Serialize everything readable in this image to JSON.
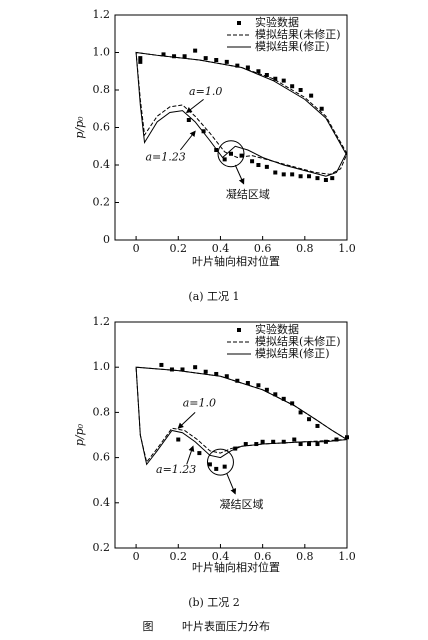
{
  "chart_data": [
    {
      "type": "line",
      "caption": "(a) 工况 1",
      "xlabel": "叶片轴向相对位置",
      "ylabel": "p/p₀",
      "xlim": [
        -0.1,
        1.0
      ],
      "ylim": [
        0,
        1.2
      ],
      "xticks": [
        0,
        0.2,
        0.4,
        0.6,
        0.8,
        {
          "value": 1,
          "label": "1.0"
        }
      ],
      "yticks": [
        0,
        0.2,
        0.4,
        0.6,
        0.8,
        {
          "value": 1,
          "label": "1.0"
        },
        1.2
      ],
      "legend": "upper right",
      "annotations": [
        "a=1.0",
        "a=1.23",
        "凝结区域"
      ],
      "series": [
        {
          "name": "实验数据",
          "color": "#000000",
          "style": "markers",
          "x": [
            0.02,
            0.02,
            0.13,
            0.18,
            0.23,
            0.28,
            0.33,
            0.38,
            0.43,
            0.48,
            0.53,
            0.58,
            0.62,
            0.66,
            0.7,
            0.74,
            0.78,
            0.83,
            0.88,
            0.25,
            0.32,
            0.38,
            0.42,
            0.45,
            0.5,
            0.55,
            0.58,
            0.62,
            0.66,
            0.7,
            0.74,
            0.78,
            0.82,
            0.86,
            0.9,
            0.93
          ],
          "values": [
            0.97,
            0.95,
            0.99,
            0.98,
            0.98,
            1.01,
            0.97,
            0.96,
            0.95,
            0.93,
            0.92,
            0.9,
            0.88,
            0.86,
            0.85,
            0.82,
            0.8,
            0.77,
            0.7,
            0.64,
            0.58,
            0.48,
            0.43,
            0.46,
            0.45,
            0.42,
            0.4,
            0.39,
            0.36,
            0.35,
            0.35,
            0.34,
            0.34,
            0.33,
            0.32,
            0.33
          ]
        },
        {
          "name": "模拟结果(未修正)",
          "color": "#000000",
          "style": "dashed",
          "x": [
            1.0,
            0.95,
            0.9,
            0.8,
            0.65,
            0.5,
            0.3,
            0.1,
            0.0,
            0.02,
            0.04,
            0.1,
            0.16,
            0.22,
            0.28,
            0.35,
            0.42,
            0.48,
            0.55,
            0.65,
            0.75,
            0.85,
            0.92,
            0.97,
            1.0
          ],
          "values": [
            0.46,
            0.56,
            0.66,
            0.76,
            0.86,
            0.92,
            0.96,
            0.985,
            1.0,
            0.75,
            0.56,
            0.66,
            0.71,
            0.72,
            0.66,
            0.57,
            0.47,
            0.44,
            0.45,
            0.42,
            0.39,
            0.36,
            0.35,
            0.38,
            0.46
          ]
        },
        {
          "name": "模拟结果(修正)",
          "color": "#000000",
          "style": "solid",
          "x": [
            1.0,
            0.95,
            0.9,
            0.8,
            0.65,
            0.5,
            0.3,
            0.1,
            0.0,
            0.02,
            0.04,
            0.1,
            0.16,
            0.22,
            0.28,
            0.35,
            0.41,
            0.47,
            0.53,
            0.6,
            0.7,
            0.8,
            0.9,
            0.95,
            1.0
          ],
          "values": [
            0.45,
            0.55,
            0.65,
            0.75,
            0.85,
            0.92,
            0.96,
            0.985,
            1.0,
            0.72,
            0.52,
            0.63,
            0.68,
            0.69,
            0.63,
            0.53,
            0.44,
            0.5,
            0.48,
            0.44,
            0.4,
            0.37,
            0.34,
            0.36,
            0.47
          ]
        }
      ]
    },
    {
      "type": "line",
      "caption": "(b) 工况 2",
      "xlabel": "叶片轴向相对位置",
      "ylabel": "p/p₀",
      "xlim": [
        -0.1,
        1.0
      ],
      "ylim": [
        0.2,
        1.2
      ],
      "xticks": [
        0,
        0.2,
        0.4,
        0.6,
        0.8,
        {
          "value": 1,
          "label": "1.0"
        }
      ],
      "yticks": [
        0.2,
        0.4,
        0.6,
        0.8,
        {
          "value": 1,
          "label": "1.0"
        },
        1.2
      ],
      "legend": "upper right",
      "annotations": [
        "a=1.0",
        "a=1.23",
        "凝结区域"
      ],
      "series": [
        {
          "name": "实验数据",
          "color": "#000000",
          "style": "markers",
          "x": [
            0.12,
            0.17,
            0.22,
            0.28,
            0.33,
            0.38,
            0.43,
            0.48,
            0.53,
            0.58,
            0.62,
            0.66,
            0.7,
            0.74,
            0.78,
            0.82,
            0.86,
            0.2,
            0.3,
            0.35,
            0.38,
            0.42,
            0.47,
            0.52,
            0.57,
            0.6,
            0.65,
            0.7,
            0.75,
            0.78,
            0.82,
            0.86,
            0.9,
            0.95,
            1.0
          ],
          "values": [
            1.01,
            0.99,
            0.99,
            1.0,
            0.98,
            0.97,
            0.96,
            0.94,
            0.93,
            0.92,
            0.9,
            0.88,
            0.86,
            0.84,
            0.8,
            0.77,
            0.74,
            0.68,
            0.62,
            0.57,
            0.55,
            0.56,
            0.64,
            0.66,
            0.66,
            0.67,
            0.67,
            0.67,
            0.68,
            0.66,
            0.66,
            0.66,
            0.67,
            0.68,
            0.69
          ]
        },
        {
          "name": "模拟结果(未修正)",
          "color": "#000000",
          "style": "dashed",
          "x": [
            1.0,
            0.93,
            0.85,
            0.75,
            0.6,
            0.4,
            0.2,
            0.0,
            0.02,
            0.05,
            0.1,
            0.17,
            0.23,
            0.29,
            0.35,
            0.4,
            0.45,
            0.5,
            0.6,
            0.7,
            0.8,
            0.9,
            1.0
          ],
          "values": [
            0.68,
            0.72,
            0.77,
            0.83,
            0.9,
            0.96,
            0.985,
            1.0,
            0.7,
            0.58,
            0.64,
            0.73,
            0.72,
            0.68,
            0.63,
            0.62,
            0.64,
            0.65,
            0.66,
            0.665,
            0.67,
            0.675,
            0.68
          ]
        },
        {
          "name": "模拟结果(修正)",
          "color": "#000000",
          "style": "solid",
          "x": [
            1.0,
            0.93,
            0.85,
            0.75,
            0.6,
            0.4,
            0.2,
            0.0,
            0.02,
            0.05,
            0.1,
            0.17,
            0.22,
            0.28,
            0.35,
            0.4,
            0.45,
            0.5,
            0.6,
            0.7,
            0.8,
            0.9,
            1.0
          ],
          "values": [
            0.68,
            0.72,
            0.77,
            0.83,
            0.9,
            0.96,
            0.985,
            1.0,
            0.7,
            0.57,
            0.63,
            0.72,
            0.71,
            0.67,
            0.61,
            0.6,
            0.63,
            0.65,
            0.66,
            0.665,
            0.67,
            0.67,
            0.68
          ]
        }
      ]
    }
  ],
  "figure": {
    "label": "图",
    "caption": "叶片表面压力分布"
  }
}
